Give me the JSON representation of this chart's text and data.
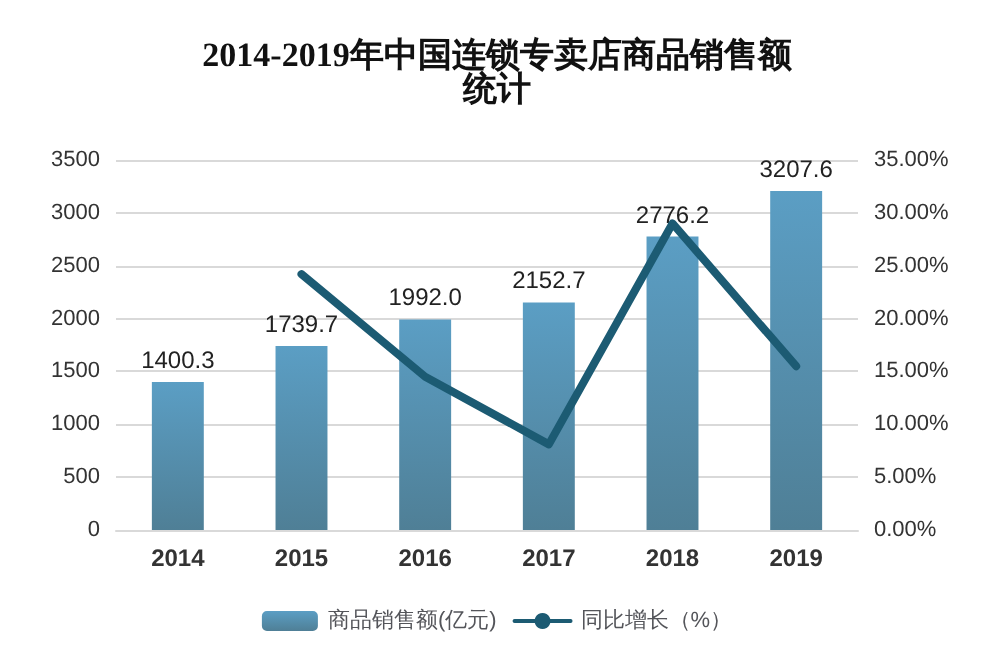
{
  "chart_data": {
    "type": "bar",
    "title": "2014-2019年中国连锁专卖店商品销售额统计",
    "categories": [
      "2014",
      "2015",
      "2016",
      "2017",
      "2018",
      "2019"
    ],
    "series": [
      {
        "name": "商品销售额(亿元)",
        "color": "#5b9ec4",
        "values": [
          1400.3,
          1739.7,
          1992.0,
          2152.7,
          2776.2,
          3207.6
        ],
        "value_labels": [
          "1400.3",
          "1739.7",
          "1992.0",
          "2152.7",
          "2776.2",
          "3207.6"
        ]
      },
      {
        "name": "同比增长（%）",
        "type": "line",
        "axis": "y2",
        "color": "#1c5b73",
        "values": [
          null,
          24.2,
          14.5,
          8.1,
          29.0,
          15.5
        ],
        "marker": "none"
      }
    ],
    "ylim": [
      0,
      3500
    ],
    "yticks": [
      0,
      500,
      1000,
      1500,
      2000,
      2500,
      3000,
      3500
    ],
    "y2lim": [
      0,
      35
    ],
    "y2ticks": [
      {
        "value": 0,
        "label": "0.00%"
      },
      {
        "value": 5,
        "label": "5.00%"
      },
      {
        "value": 10,
        "label": "10.00%"
      },
      {
        "value": 15,
        "label": "15.00%"
      },
      {
        "value": 20,
        "label": "20.00%"
      },
      {
        "value": 25,
        "label": "25.00%"
      },
      {
        "value": 30,
        "label": "30.00%"
      },
      {
        "value": 35,
        "label": "35.00%"
      }
    ],
    "grid": "y",
    "legend": "bottom"
  }
}
